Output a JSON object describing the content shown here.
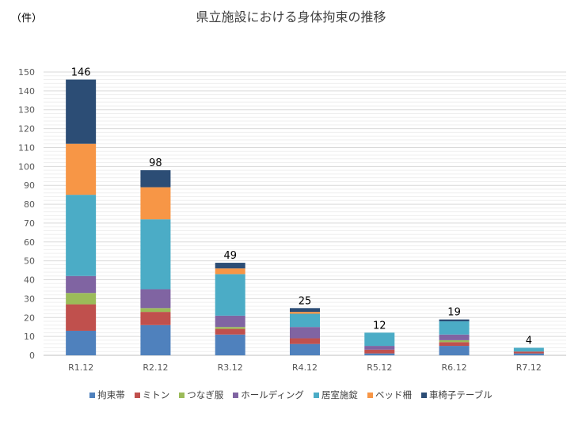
{
  "chart_data": {
    "type": "bar",
    "stacked": true,
    "title": "県立施設における身体拘束の推移",
    "ylabel": "（件）",
    "xlabel": "",
    "ylim": [
      0,
      150
    ],
    "ytick_step": 10,
    "grid": true,
    "legend_position": "bottom",
    "categories": [
      "R1.12",
      "R2.12",
      "R3.12",
      "R4.12",
      "R5.12",
      "R6.12",
      "R7.12"
    ],
    "totals": [
      146,
      98,
      49,
      25,
      12,
      19,
      4
    ],
    "series": [
      {
        "name": "拘束帯",
        "color": "#4F81BD",
        "values": [
          13,
          16,
          11,
          6,
          1,
          5,
          1
        ]
      },
      {
        "name": "ミトン",
        "color": "#C0504D",
        "values": [
          14,
          7,
          3,
          3,
          2,
          2,
          1
        ]
      },
      {
        "name": "つなぎ服",
        "color": "#9BBB59",
        "values": [
          6,
          2,
          1,
          0,
          0,
          1,
          0
        ]
      },
      {
        "name": "ホールディング",
        "color": "#8064A2",
        "values": [
          9,
          10,
          6,
          6,
          2,
          3,
          0
        ]
      },
      {
        "name": "居室施錠",
        "color": "#4BACC6",
        "values": [
          43,
          37,
          22,
          7,
          7,
          7,
          2
        ]
      },
      {
        "name": "ベッド柵",
        "color": "#F79646",
        "values": [
          27,
          17,
          3,
          1,
          0,
          0,
          0
        ]
      },
      {
        "name": "車椅子テーブル",
        "color": "#2C4D75",
        "values": [
          34,
          9,
          3,
          2,
          0,
          1,
          0
        ]
      }
    ]
  }
}
